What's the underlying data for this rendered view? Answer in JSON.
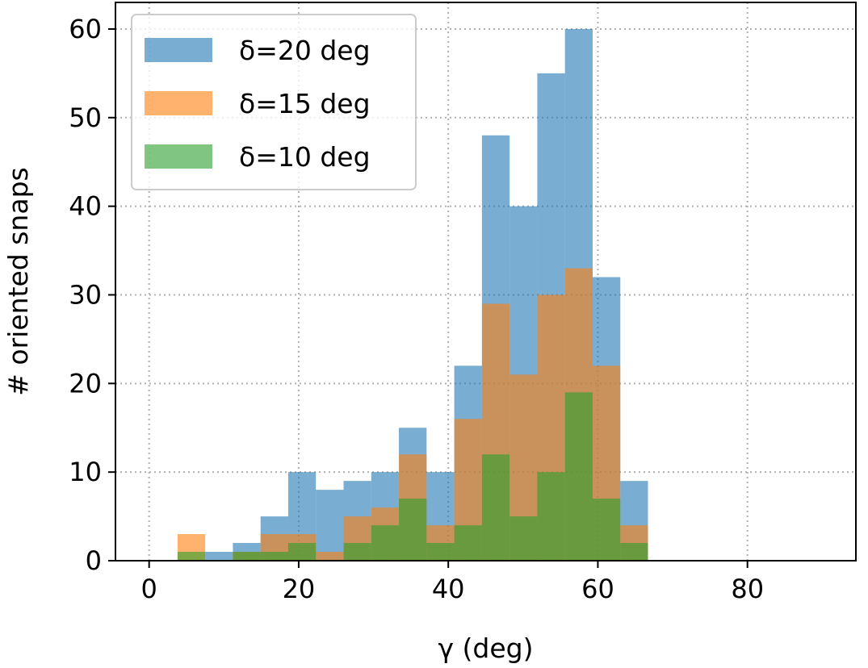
{
  "chart_data": {
    "type": "bar",
    "xlabel": "γ (deg)",
    "ylabel": "# oriented snaps",
    "xlim": [
      -4.5,
      94.5
    ],
    "ylim": [
      0,
      63
    ],
    "xticks": [
      0,
      20,
      40,
      60,
      80
    ],
    "yticks": [
      0,
      10,
      20,
      30,
      40,
      50,
      60
    ],
    "grid": true,
    "legend_position": "top-left",
    "bin_edges": [
      3.8,
      7.5,
      11.2,
      14.9,
      18.6,
      22.3,
      26.0,
      29.7,
      33.4,
      37.1,
      40.8,
      44.5,
      48.2,
      51.9,
      55.6,
      59.3,
      63.0,
      66.7
    ],
    "series": [
      {
        "name": "δ=20 deg",
        "color": "#1f77b4",
        "values": [
          0,
          1,
          2,
          5,
          10,
          8,
          9,
          10,
          15,
          10,
          22,
          48,
          40,
          55,
          60,
          32,
          9
        ]
      },
      {
        "name": "δ=15 deg",
        "color": "#ff7f0e",
        "values": [
          3,
          0,
          1,
          3,
          3,
          1,
          5,
          6,
          12,
          4,
          16,
          29,
          21,
          30,
          33,
          22,
          4
        ]
      },
      {
        "name": "δ=10 deg",
        "color": "#2ca02c",
        "values": [
          1,
          0,
          1,
          1,
          2,
          0,
          2,
          4,
          7,
          2,
          4,
          12,
          5,
          10,
          19,
          7,
          2
        ]
      }
    ]
  }
}
